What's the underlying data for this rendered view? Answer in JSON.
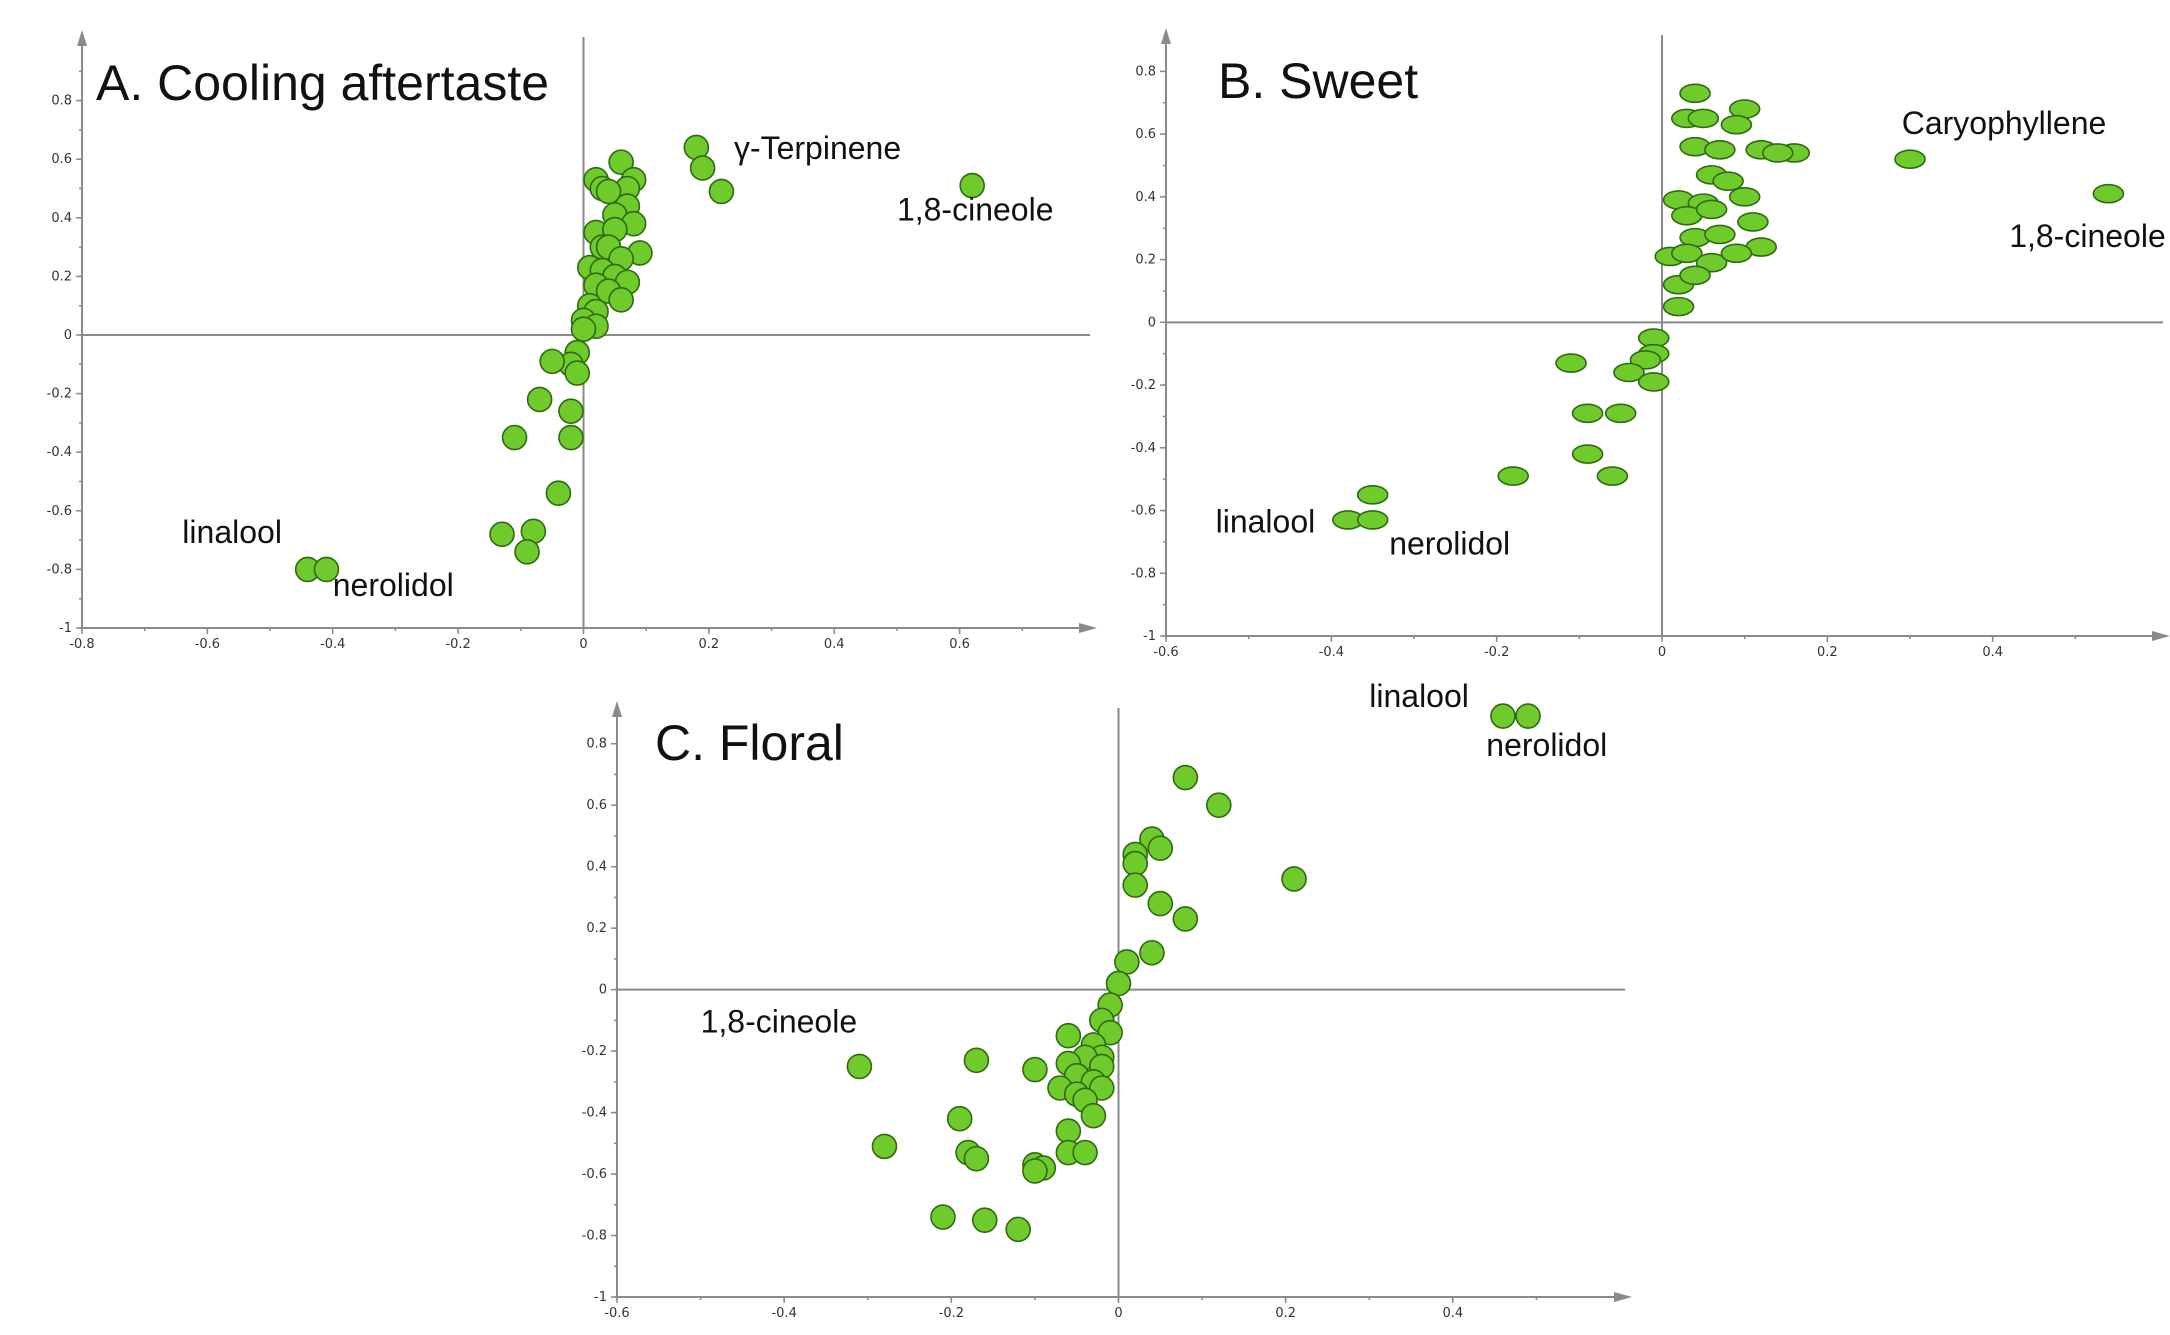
{
  "chart_data": [
    {
      "type": "scatter",
      "title": "A. Cooling aftertaste",
      "xlim": [
        -0.8,
        0.8
      ],
      "ylim": [
        -1,
        1
      ],
      "xticks": [
        -0.8,
        -0.6,
        -0.4,
        -0.2,
        0,
        0.2,
        0.4,
        0.6
      ],
      "yticks": [
        -1,
        -0.8,
        -0.6,
        -0.4,
        -0.2,
        0,
        0.2,
        0.4,
        0.6,
        0.8
      ],
      "xtick_labels": [
        "-0.8",
        "-0.6",
        "-0.4",
        "-0.2",
        "0",
        "0.2",
        "0.4",
        "0.6"
      ],
      "ytick_labels": [
        "-1",
        "-0.8",
        "-0.6",
        "-0.4",
        "-0.2",
        "0",
        "0.2",
        "0.4",
        "0.6",
        "0.8"
      ],
      "grid": false,
      "marker": "circle",
      "points": [
        [
          0.62,
          0.51
        ],
        [
          0.18,
          0.64
        ],
        [
          0.19,
          0.57
        ],
        [
          0.22,
          0.49
        ],
        [
          0.06,
          0.59
        ],
        [
          0.08,
          0.53
        ],
        [
          0.02,
          0.53
        ],
        [
          0.03,
          0.5
        ],
        [
          0.07,
          0.5
        ],
        [
          0.04,
          0.49
        ],
        [
          0.07,
          0.44
        ],
        [
          0.05,
          0.41
        ],
        [
          0.08,
          0.38
        ],
        [
          0.02,
          0.35
        ],
        [
          0.05,
          0.36
        ],
        [
          0.09,
          0.28
        ],
        [
          0.03,
          0.3
        ],
        [
          0.04,
          0.3
        ],
        [
          0.06,
          0.26
        ],
        [
          0.01,
          0.23
        ],
        [
          0.03,
          0.22
        ],
        [
          0.05,
          0.2
        ],
        [
          0.07,
          0.18
        ],
        [
          0.02,
          0.17
        ],
        [
          0.04,
          0.15
        ],
        [
          0.06,
          0.12
        ],
        [
          0.01,
          0.1
        ],
        [
          0.02,
          0.08
        ],
        [
          0.0,
          0.05
        ],
        [
          0.02,
          0.03
        ],
        [
          0.0,
          0.02
        ],
        [
          -0.01,
          -0.06
        ],
        [
          -0.02,
          -0.1
        ],
        [
          -0.01,
          -0.13
        ],
        [
          -0.05,
          -0.09
        ],
        [
          -0.07,
          -0.22
        ],
        [
          -0.02,
          -0.26
        ],
        [
          -0.02,
          -0.35
        ],
        [
          -0.11,
          -0.35
        ],
        [
          -0.04,
          -0.54
        ],
        [
          -0.13,
          -0.68
        ],
        [
          -0.08,
          -0.67
        ],
        [
          -0.09,
          -0.74
        ],
        [
          -0.44,
          -0.8
        ],
        [
          -0.41,
          -0.8
        ]
      ],
      "annotations": [
        {
          "text": "γ-Terpinene",
          "x": 0.24,
          "y": 0.6
        },
        {
          "text": "1,8-cineole",
          "x": 0.5,
          "y": 0.39
        },
        {
          "text": "linalool",
          "x": -0.64,
          "y": -0.71
        },
        {
          "text": "nerolidol",
          "x": -0.4,
          "y": -0.89
        }
      ]
    },
    {
      "type": "scatter",
      "title": "B. Sweet",
      "xlim": [
        -0.6,
        0.6
      ],
      "ylim": [
        -1,
        0.9
      ],
      "xticks": [
        -0.6,
        -0.4,
        -0.2,
        0,
        0.2,
        0.4
      ],
      "yticks": [
        -1,
        -0.8,
        -0.6,
        -0.4,
        -0.2,
        0,
        0.2,
        0.4,
        0.6,
        0.8
      ],
      "xtick_labels": [
        "-0.6",
        "-0.4",
        "-0.2",
        "0",
        "0.2",
        "0.4"
      ],
      "ytick_labels": [
        "-1",
        "-0.8",
        "-0.6",
        "-0.4",
        "-0.2",
        "0",
        "0.2",
        "0.4",
        "0.6",
        "0.8"
      ],
      "grid": false,
      "marker": "ellipse",
      "points": [
        [
          0.54,
          0.41
        ],
        [
          0.3,
          0.52
        ],
        [
          0.16,
          0.54
        ],
        [
          0.04,
          0.73
        ],
        [
          0.1,
          0.68
        ],
        [
          0.03,
          0.65
        ],
        [
          0.05,
          0.65
        ],
        [
          0.09,
          0.63
        ],
        [
          0.04,
          0.56
        ],
        [
          0.07,
          0.55
        ],
        [
          0.12,
          0.55
        ],
        [
          0.14,
          0.54
        ],
        [
          0.06,
          0.47
        ],
        [
          0.08,
          0.45
        ],
        [
          0.02,
          0.39
        ],
        [
          0.05,
          0.38
        ],
        [
          0.1,
          0.4
        ],
        [
          0.03,
          0.34
        ],
        [
          0.06,
          0.36
        ],
        [
          0.11,
          0.32
        ],
        [
          0.04,
          0.27
        ],
        [
          0.07,
          0.28
        ],
        [
          0.12,
          0.24
        ],
        [
          0.01,
          0.21
        ],
        [
          0.03,
          0.22
        ],
        [
          0.06,
          0.19
        ],
        [
          0.09,
          0.22
        ],
        [
          0.02,
          0.12
        ],
        [
          0.04,
          0.15
        ],
        [
          0.02,
          0.05
        ],
        [
          -0.01,
          -0.05
        ],
        [
          -0.01,
          -0.1
        ],
        [
          -0.02,
          -0.12
        ],
        [
          -0.04,
          -0.16
        ],
        [
          -0.01,
          -0.19
        ],
        [
          -0.11,
          -0.13
        ],
        [
          -0.09,
          -0.29
        ],
        [
          -0.05,
          -0.29
        ],
        [
          -0.09,
          -0.42
        ],
        [
          -0.06,
          -0.49
        ],
        [
          -0.18,
          -0.49
        ],
        [
          -0.35,
          -0.55
        ],
        [
          -0.38,
          -0.63
        ],
        [
          -0.35,
          -0.63
        ]
      ],
      "annotations": [
        {
          "text": "Caryophyllene",
          "x": 0.29,
          "y": 0.6
        },
        {
          "text": "1,8-cineole",
          "x": 0.42,
          "y": 0.24
        },
        {
          "text": "linalool",
          "x": -0.54,
          "y": -0.67
        },
        {
          "text": "nerolidol",
          "x": -0.33,
          "y": -0.74
        }
      ]
    },
    {
      "type": "scatter",
      "title": "C. Floral",
      "xlim": [
        -0.6,
        0.6
      ],
      "ylim": [
        -1,
        0.9
      ],
      "xticks": [
        -0.6,
        -0.4,
        -0.2,
        0,
        0.2,
        0.4
      ],
      "yticks": [
        -1,
        -0.8,
        -0.6,
        -0.4,
        -0.2,
        0,
        0.2,
        0.4,
        0.6,
        0.8
      ],
      "xtick_labels": [
        "-0.6",
        "-0.4",
        "-0.2",
        "0",
        "0.2",
        "0.4"
      ],
      "ytick_labels": [
        "-1",
        "-0.8",
        "-0.6",
        "-0.4",
        "-0.2",
        "0",
        "0.2",
        "0.4",
        "0.6",
        "0.8"
      ],
      "grid": false,
      "marker": "circle",
      "points": [
        [
          0.46,
          0.89
        ],
        [
          0.49,
          0.89
        ],
        [
          0.08,
          0.69
        ],
        [
          0.12,
          0.6
        ],
        [
          0.21,
          0.36
        ],
        [
          0.04,
          0.49
        ],
        [
          0.02,
          0.44
        ],
        [
          0.05,
          0.46
        ],
        [
          0.02,
          0.41
        ],
        [
          0.02,
          0.34
        ],
        [
          0.05,
          0.28
        ],
        [
          0.08,
          0.23
        ],
        [
          0.04,
          0.12
        ],
        [
          0.01,
          0.09
        ],
        [
          0.0,
          0.02
        ],
        [
          -0.01,
          -0.05
        ],
        [
          -0.02,
          -0.1
        ],
        [
          -0.01,
          -0.14
        ],
        [
          -0.06,
          -0.15
        ],
        [
          -0.03,
          -0.18
        ],
        [
          -0.02,
          -0.22
        ],
        [
          -0.04,
          -0.22
        ],
        [
          -0.06,
          -0.24
        ],
        [
          -0.02,
          -0.25
        ],
        [
          -0.05,
          -0.28
        ],
        [
          -0.03,
          -0.3
        ],
        [
          -0.02,
          -0.32
        ],
        [
          -0.07,
          -0.32
        ],
        [
          -0.05,
          -0.34
        ],
        [
          -0.04,
          -0.36
        ],
        [
          -0.03,
          -0.41
        ],
        [
          -0.06,
          -0.46
        ],
        [
          -0.06,
          -0.53
        ],
        [
          -0.04,
          -0.53
        ],
        [
          -0.1,
          -0.26
        ],
        [
          -0.17,
          -0.23
        ],
        [
          -0.19,
          -0.42
        ],
        [
          -0.18,
          -0.53
        ],
        [
          -0.17,
          -0.55
        ],
        [
          -0.1,
          -0.57
        ],
        [
          -0.09,
          -0.58
        ],
        [
          -0.1,
          -0.59
        ],
        [
          -0.31,
          -0.25
        ],
        [
          -0.28,
          -0.51
        ],
        [
          -0.21,
          -0.74
        ],
        [
          -0.16,
          -0.75
        ],
        [
          -0.12,
          -0.78
        ]
      ],
      "annotations": [
        {
          "text": "1,8-cineole",
          "x": -0.5,
          "y": -0.14
        },
        {
          "text": "linalool",
          "x": 0.3,
          "y": 0.92
        },
        {
          "text": "nerolidol",
          "x": 0.44,
          "y": 0.76
        }
      ]
    }
  ],
  "colors": {
    "marker_fill": "#6fcb2c",
    "marker_stroke": "#2f6a12",
    "axis": "#8a8a8a",
    "text": "#111111"
  }
}
